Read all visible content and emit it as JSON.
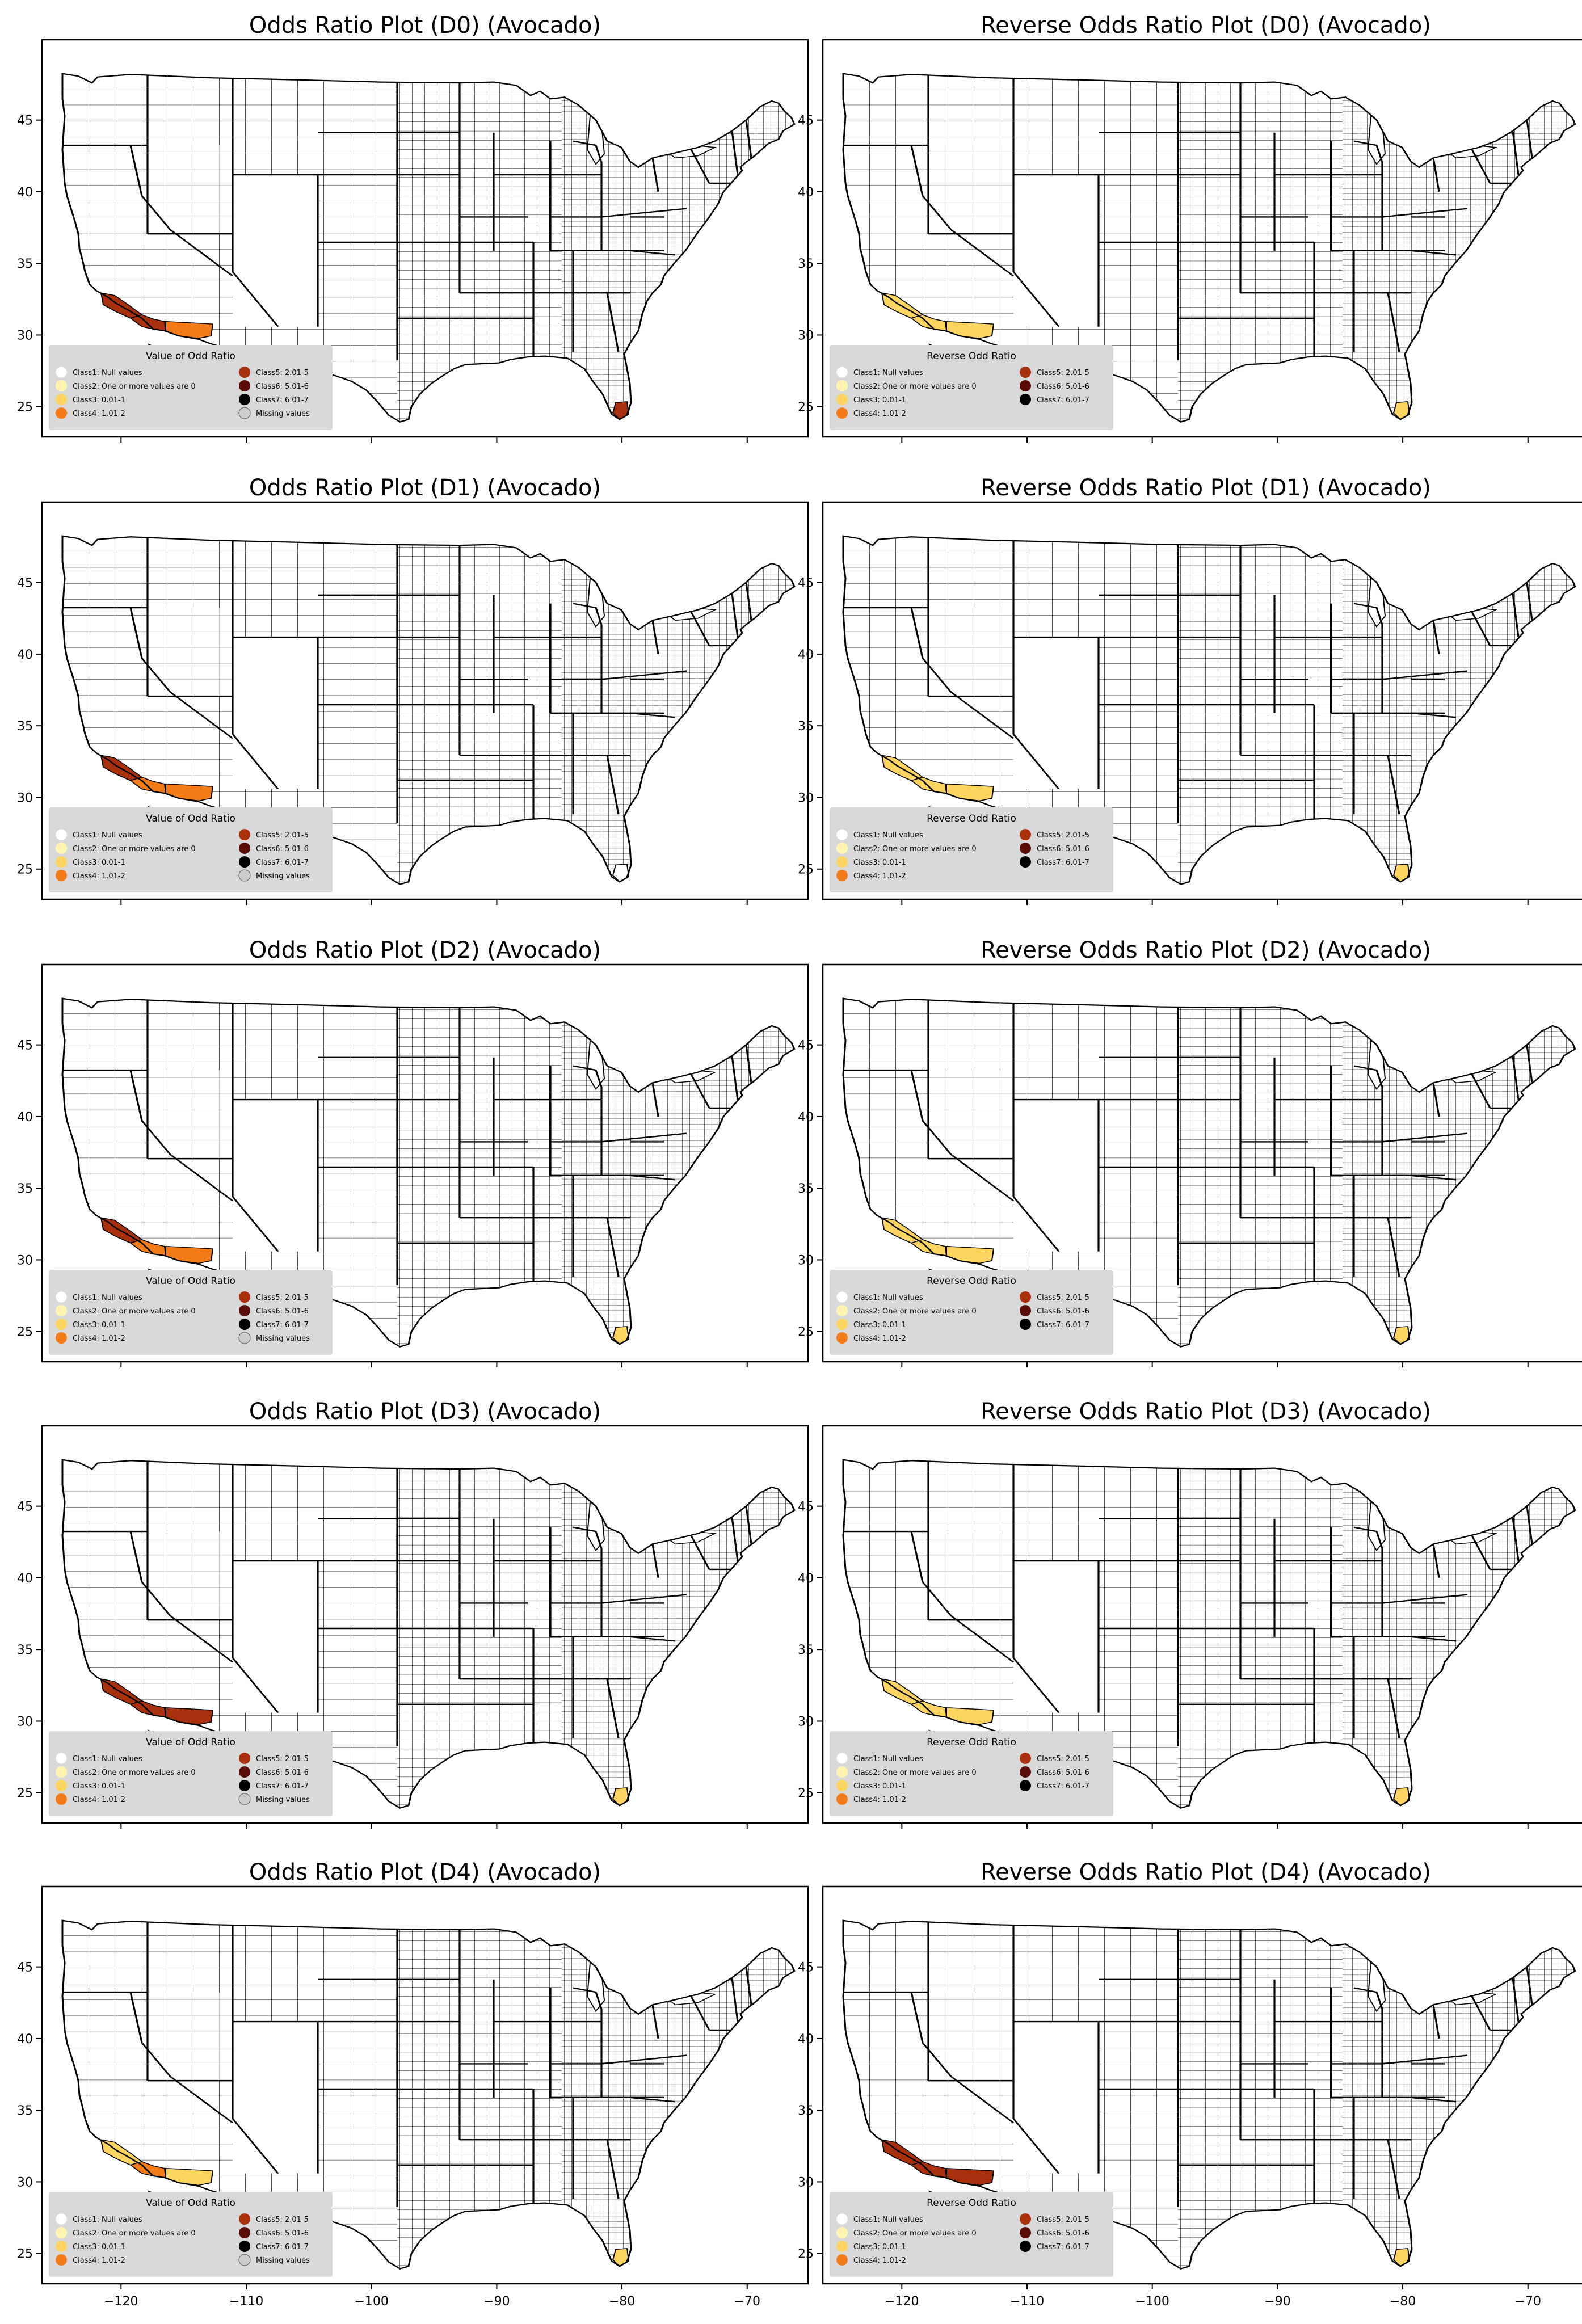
{
  "legend_odds": {
    "title": "Value of Odd Ratio",
    "left": [
      "Class1: Null values",
      "Class2: One or more values are 0",
      "Class3: 0.01-1",
      "Class4: 1.01-2"
    ],
    "right": [
      "Class5: 2.01-5",
      "Class6: 5.01-6",
      "Class7: 6.01-7",
      "Missing values"
    ]
  },
  "legend_reverse": {
    "title": "Reverse Odd Ratio",
    "left": [
      "Class1: Null values",
      "Class2: One or more values are 0",
      "Class3: 0.01-1",
      "Class4: 1.01-2"
    ],
    "right": [
      "Class5: 2.01-5",
      "Class6: 5.01-6",
      "Class7: 6.01-7"
    ]
  },
  "class_colors": {
    "class1": "#ffffff",
    "class2": "#fff5b0",
    "class3": "#fdd560",
    "class4": "#f47c18",
    "class5": "#a8300c",
    "class6": "#5a0c06",
    "class7": "#000000",
    "missing": "#cccccc"
  },
  "y_ticks": [
    "45",
    "40",
    "35",
    "30",
    "25"
  ],
  "x_ticks": [
    "−120",
    "−110",
    "−100",
    "−90",
    "−80",
    "−70"
  ],
  "panels": [
    {
      "title": "Odds Ratio Plot (D0) (Avocado)",
      "legend": "odds",
      "ca_north": "class5",
      "ca_south": "class5",
      "az": "class4",
      "fl": "class5"
    },
    {
      "title": "Reverse Odds Ratio Plot (D0) (Avocado)",
      "legend": "reverse",
      "ca_north": "class3",
      "ca_south": "class3",
      "az": "class3",
      "fl": "class3"
    },
    {
      "title": "Odds Ratio Plot (D1) (Avocado)",
      "legend": "odds",
      "ca_north": "class5",
      "ca_south": "class4",
      "az": "class4",
      "fl": "class1"
    },
    {
      "title": "Reverse Odds Ratio Plot (D1) (Avocado)",
      "legend": "reverse",
      "ca_north": "class3",
      "ca_south": "class3",
      "az": "class3",
      "fl": "class3"
    },
    {
      "title": "Odds Ratio Plot (D2) (Avocado)",
      "legend": "odds",
      "ca_north": "class5",
      "ca_south": "class4",
      "az": "class4",
      "fl": "class3"
    },
    {
      "title": "Reverse Odds Ratio Plot (D2) (Avocado)",
      "legend": "reverse",
      "ca_north": "class3",
      "ca_south": "class3",
      "az": "class3",
      "fl": "class3"
    },
    {
      "title": "Odds Ratio Plot (D3) (Avocado)",
      "legend": "odds",
      "ca_north": "class5",
      "ca_south": "class5",
      "az": "class5",
      "fl": "class3"
    },
    {
      "title": "Reverse Odds Ratio Plot (D3) (Avocado)",
      "legend": "reverse",
      "ca_north": "class3",
      "ca_south": "class3",
      "az": "class3",
      "fl": "class3"
    },
    {
      "title": "Odds Ratio Plot (D4) (Avocado)",
      "legend": "odds",
      "ca_north": "class3",
      "ca_south": "class4",
      "az": "class3",
      "fl": "class3"
    },
    {
      "title": "Reverse Odds Ratio Plot (D4) (Avocado)",
      "legend": "reverse",
      "ca_north": "class5",
      "ca_south": "class5",
      "az": "class5",
      "fl": "class3"
    }
  ]
}
